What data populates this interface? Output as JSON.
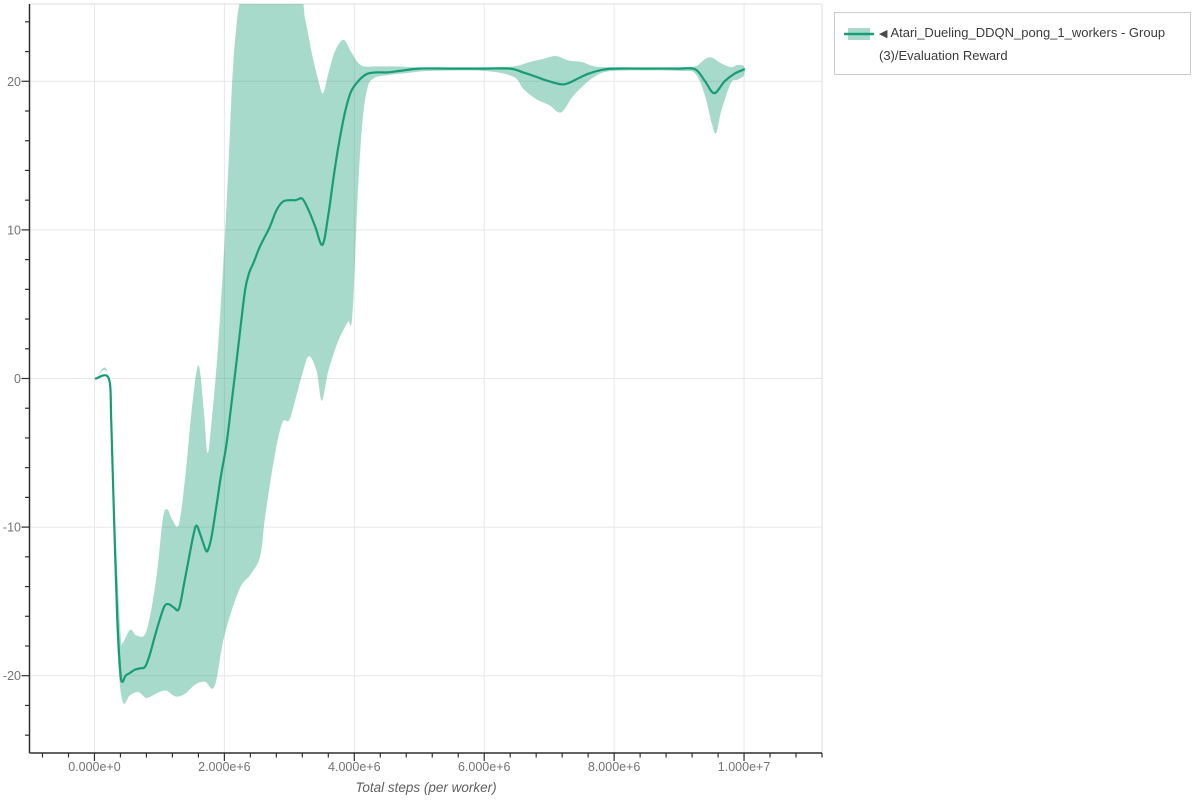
{
  "colors": {
    "line": "#179d75",
    "band_fill": "#1b9e77",
    "band_opacity": 0.38,
    "axis": "#2f2f2f",
    "grid": "#e7e7e7",
    "frame": "#dddddd",
    "tick_label": "#737373",
    "axis_title": "#5f5f5f",
    "legend_border": "#cccccc",
    "legend_text": "#3b3b3b",
    "background": "#ffffff"
  },
  "legend": {
    "collapse_icon": "◀",
    "label": "Atari_Dueling_DDQN_pong_1_workers - Group(3)/Evaluation Reward"
  },
  "chart_data": {
    "type": "line",
    "title": "",
    "xlabel": "Total steps (per worker)",
    "ylabel": "",
    "grid": true,
    "legend_position": "outside-top-right",
    "x_range": [
      -1000000,
      11200000
    ],
    "y_range": [
      -25.2,
      25.2
    ],
    "x_ticks": {
      "major": [
        {
          "value": 0,
          "label": "0.000e+0"
        },
        {
          "value": 2000000,
          "label": "2.000e+6"
        },
        {
          "value": 4000000,
          "label": "4.000e+6"
        },
        {
          "value": 6000000,
          "label": "6.000e+6"
        },
        {
          "value": 8000000,
          "label": "8.000e+6"
        },
        {
          "value": 10000000,
          "label": "1.000e+7"
        }
      ],
      "minor_step": 400000
    },
    "y_ticks": {
      "major": [
        {
          "value": -20,
          "label": "-20"
        },
        {
          "value": -10,
          "label": "-10"
        },
        {
          "value": 0,
          "label": "0"
        },
        {
          "value": 10,
          "label": "10"
        },
        {
          "value": 20,
          "label": "20"
        }
      ],
      "minor_step": 2
    },
    "series": [
      {
        "name": "Atari_Dueling_DDQN_pong_1_workers - Group(3)/Evaluation Reward",
        "mean": [
          [
            20000,
            0
          ],
          [
            220000,
            0
          ],
          [
            260000,
            -3
          ],
          [
            300000,
            -9
          ],
          [
            350000,
            -16
          ],
          [
            400000,
            -19.8
          ],
          [
            430000,
            -20.4
          ],
          [
            480000,
            -20
          ],
          [
            550000,
            -19.8
          ],
          [
            620000,
            -19.6
          ],
          [
            700000,
            -19.5
          ],
          [
            780000,
            -19.4
          ],
          [
            850000,
            -18.6
          ],
          [
            920000,
            -17.5
          ],
          [
            1000000,
            -16.3
          ],
          [
            1080000,
            -15.3
          ],
          [
            1150000,
            -15.2
          ],
          [
            1220000,
            -15.4
          ],
          [
            1300000,
            -15.5
          ],
          [
            1380000,
            -13.8
          ],
          [
            1450000,
            -12.2
          ],
          [
            1520000,
            -10.6
          ],
          [
            1570000,
            -9.9
          ],
          [
            1630000,
            -10.5
          ],
          [
            1700000,
            -11.4
          ],
          [
            1740000,
            -11.6
          ],
          [
            1800000,
            -10.7
          ],
          [
            1880000,
            -8.5
          ],
          [
            1950000,
            -6.5
          ],
          [
            2030000,
            -4.5
          ],
          [
            2100000,
            -2
          ],
          [
            2170000,
            0.5
          ],
          [
            2250000,
            3.5
          ],
          [
            2320000,
            6
          ],
          [
            2380000,
            7.1
          ],
          [
            2450000,
            7.8
          ],
          [
            2550000,
            8.9
          ],
          [
            2700000,
            10.2
          ],
          [
            2800000,
            11.3
          ],
          [
            2900000,
            11.9
          ],
          [
            3000000,
            12
          ],
          [
            3100000,
            12
          ],
          [
            3200000,
            12.1
          ],
          [
            3300000,
            11.3
          ],
          [
            3400000,
            10.2
          ],
          [
            3510000,
            9
          ],
          [
            3600000,
            11
          ],
          [
            3680000,
            13.5
          ],
          [
            3750000,
            15.5
          ],
          [
            3850000,
            17.8
          ],
          [
            3950000,
            19.3
          ],
          [
            4080000,
            20.1
          ],
          [
            4200000,
            20.5
          ],
          [
            4350000,
            20.6
          ],
          [
            4500000,
            20.6
          ],
          [
            4700000,
            20.7
          ],
          [
            5000000,
            20.85
          ],
          [
            5500000,
            20.85
          ],
          [
            6000000,
            20.85
          ],
          [
            6400000,
            20.85
          ],
          [
            6600000,
            20.6
          ],
          [
            6800000,
            20.3
          ],
          [
            7000000,
            20
          ],
          [
            7230000,
            19.8
          ],
          [
            7450000,
            20.2
          ],
          [
            7600000,
            20.5
          ],
          [
            7800000,
            20.75
          ],
          [
            8000000,
            20.85
          ],
          [
            8500000,
            20.85
          ],
          [
            9000000,
            20.85
          ],
          [
            9250000,
            20.8
          ],
          [
            9400000,
            20
          ],
          [
            9540000,
            19.2
          ],
          [
            9700000,
            20
          ],
          [
            9850000,
            20.5
          ],
          [
            10000000,
            20.8
          ]
        ],
        "band_upper": [
          [
            20000,
            0
          ],
          [
            220000,
            0
          ],
          [
            300000,
            -8
          ],
          [
            400000,
            -17
          ],
          [
            430000,
            -17.8
          ],
          [
            550000,
            -16.9
          ],
          [
            650000,
            -17.3
          ],
          [
            800000,
            -17
          ],
          [
            950000,
            -13.5
          ],
          [
            1050000,
            -9.5
          ],
          [
            1120000,
            -8.8
          ],
          [
            1200000,
            -9.5
          ],
          [
            1300000,
            -9.8
          ],
          [
            1400000,
            -6.5
          ],
          [
            1500000,
            -2
          ],
          [
            1600000,
            0.9
          ],
          [
            1680000,
            -2
          ],
          [
            1740000,
            -5
          ],
          [
            1800000,
            -3
          ],
          [
            1900000,
            2
          ],
          [
            2000000,
            9
          ],
          [
            2070000,
            15
          ],
          [
            2120000,
            20
          ],
          [
            2180000,
            23.5
          ],
          [
            2250000,
            25.5
          ],
          [
            2400000,
            26.5
          ],
          [
            3100000,
            26.5
          ],
          [
            3250000,
            24
          ],
          [
            3350000,
            21.8
          ],
          [
            3450000,
            20
          ],
          [
            3520000,
            19.2
          ],
          [
            3600000,
            20.5
          ],
          [
            3700000,
            22
          ],
          [
            3830000,
            22.8
          ],
          [
            3950000,
            22
          ],
          [
            4050000,
            21.3
          ],
          [
            4150000,
            21
          ],
          [
            4350000,
            21
          ],
          [
            4600000,
            21
          ],
          [
            4900000,
            20.95
          ],
          [
            5200000,
            20.95
          ],
          [
            6000000,
            20.95
          ],
          [
            6450000,
            21
          ],
          [
            6700000,
            21.3
          ],
          [
            6900000,
            21.5
          ],
          [
            7100000,
            21.7
          ],
          [
            7300000,
            21.4
          ],
          [
            7500000,
            21.3
          ],
          [
            7700000,
            21
          ],
          [
            8000000,
            20.95
          ],
          [
            9000000,
            20.95
          ],
          [
            9250000,
            21
          ],
          [
            9400000,
            21.5
          ],
          [
            9500000,
            21.6
          ],
          [
            9650000,
            21.2
          ],
          [
            9800000,
            20.95
          ],
          [
            9900000,
            21.1
          ],
          [
            10000000,
            21
          ]
        ],
        "band_lower": [
          [
            20000,
            0
          ],
          [
            220000,
            0
          ],
          [
            300000,
            -10
          ],
          [
            350000,
            -18
          ],
          [
            430000,
            -21.7
          ],
          [
            550000,
            -21.3
          ],
          [
            680000,
            -21.1
          ],
          [
            800000,
            -21.5
          ],
          [
            950000,
            -21.2
          ],
          [
            1100000,
            -21
          ],
          [
            1250000,
            -21.4
          ],
          [
            1400000,
            -21.2
          ],
          [
            1550000,
            -20.6
          ],
          [
            1700000,
            -20.4
          ],
          [
            1850000,
            -20.7
          ],
          [
            2000000,
            -17.3
          ],
          [
            2230000,
            -14.2
          ],
          [
            2400000,
            -13.2
          ],
          [
            2550000,
            -12
          ],
          [
            2620000,
            -9.5
          ],
          [
            2700000,
            -7.2
          ],
          [
            2800000,
            -4.6
          ],
          [
            2900000,
            -2.9
          ],
          [
            3000000,
            -2.8
          ],
          [
            3100000,
            -1.3
          ],
          [
            3200000,
            0.3
          ],
          [
            3300000,
            1.5
          ],
          [
            3420000,
            0.5
          ],
          [
            3500000,
            -1.5
          ],
          [
            3600000,
            0.5
          ],
          [
            3750000,
            2.5
          ],
          [
            3900000,
            3.8
          ],
          [
            3970000,
            4.2
          ],
          [
            4050000,
            12
          ],
          [
            4120000,
            17
          ],
          [
            4200000,
            19.5
          ],
          [
            4300000,
            20.2
          ],
          [
            4500000,
            20.4
          ],
          [
            4800000,
            20.55
          ],
          [
            5200000,
            20.7
          ],
          [
            6000000,
            20.7
          ],
          [
            6450000,
            20.3
          ],
          [
            6600000,
            19.5
          ],
          [
            6800000,
            18.8
          ],
          [
            7000000,
            18.4
          ],
          [
            7180000,
            17.9
          ],
          [
            7350000,
            18.9
          ],
          [
            7500000,
            19.6
          ],
          [
            7700000,
            20.3
          ],
          [
            8000000,
            20.7
          ],
          [
            9000000,
            20.7
          ],
          [
            9250000,
            20.5
          ],
          [
            9400000,
            19
          ],
          [
            9500000,
            17.2
          ],
          [
            9570000,
            16.5
          ],
          [
            9650000,
            18
          ],
          [
            9800000,
            19.9
          ],
          [
            9900000,
            20.1
          ],
          [
            10000000,
            20.4
          ]
        ]
      }
    ]
  }
}
